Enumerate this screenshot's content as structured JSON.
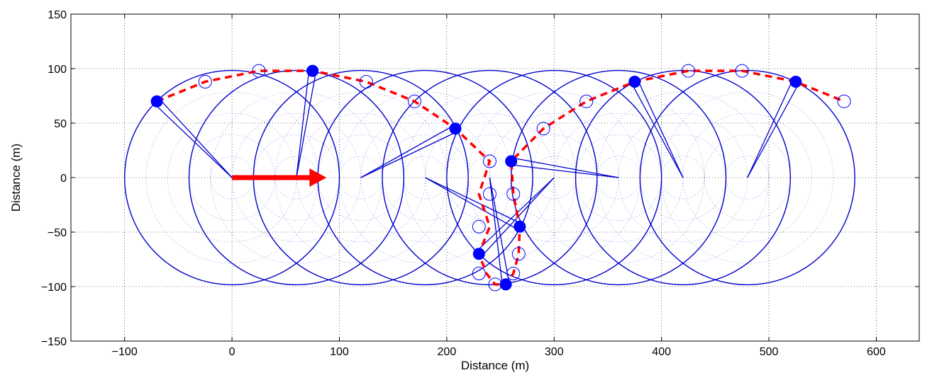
{
  "chart_data": {
    "type": "scatter",
    "title": "",
    "xlabel": "Distance (m)",
    "ylabel": "Distance (m)",
    "xlim": [
      -150,
      640
    ],
    "ylim": [
      -150,
      150
    ],
    "xticks": [
      -100,
      0,
      100,
      200,
      300,
      400,
      500,
      600
    ],
    "yticks": [
      -150,
      -100,
      -50,
      0,
      50,
      100,
      150
    ],
    "xtick_labels": [
      "−100",
      "0",
      "100",
      "200",
      "300",
      "400",
      "500",
      "600"
    ],
    "ytick_labels": [
      "−150",
      "−100",
      "−50",
      "0",
      "50",
      "100",
      "150"
    ],
    "grid": true,
    "colors": {
      "circles": "#0000cc",
      "path": "#ff0000",
      "points": "#0000ff",
      "arrow": "#ff0000"
    },
    "circles": {
      "radius": 100,
      "centers": [
        [
          0,
          0
        ],
        [
          60,
          0
        ],
        [
          120,
          0
        ],
        [
          180,
          0
        ],
        [
          240,
          0
        ],
        [
          300,
          0
        ],
        [
          360,
          0
        ],
        [
          420,
          0
        ],
        [
          480,
          0
        ]
      ]
    },
    "arrow": {
      "from": [
        0,
        0
      ],
      "to": [
        88,
        0
      ]
    },
    "path": {
      "style": "dashed",
      "x": [
        -70,
        -25,
        25,
        75,
        125,
        170,
        208,
        240,
        230,
        240,
        230,
        237,
        245,
        255,
        262,
        267,
        268,
        262,
        260,
        290,
        330,
        375,
        425,
        475,
        525,
        570
      ],
      "y": [
        70,
        88,
        98,
        98,
        88,
        70,
        45,
        15,
        -15,
        -45,
        -70,
        -88,
        -98,
        -98,
        -88,
        -70,
        -45,
        -15,
        15,
        45,
        70,
        88,
        98,
        98,
        88,
        70
      ]
    },
    "filled_points": [
      {
        "x": -70,
        "y": 70,
        "receiver": [
          0,
          0
        ]
      },
      {
        "x": 75,
        "y": 98,
        "receiver": [
          60,
          0
        ]
      },
      {
        "x": 208,
        "y": 45,
        "receiver": [
          120,
          0
        ]
      },
      {
        "x": 260,
        "y": 15,
        "receiver": [
          360,
          0
        ]
      },
      {
        "x": 268,
        "y": -45,
        "receiver": [
          180,
          0
        ]
      },
      {
        "x": 230,
        "y": -70,
        "receiver": [
          300,
          0
        ]
      },
      {
        "x": 255,
        "y": -98,
        "receiver": [
          240,
          0
        ]
      },
      {
        "x": 375,
        "y": 88,
        "receiver": [
          420,
          0
        ]
      },
      {
        "x": 525,
        "y": 88,
        "receiver": [
          480,
          0
        ]
      }
    ],
    "open_points": [
      {
        "x": -25,
        "y": 88
      },
      {
        "x": 25,
        "y": 98
      },
      {
        "x": 125,
        "y": 88
      },
      {
        "x": 170,
        "y": 70
      },
      {
        "x": 240,
        "y": 15
      },
      {
        "x": 240,
        "y": -15
      },
      {
        "x": 230,
        "y": -45
      },
      {
        "x": 230,
        "y": -88
      },
      {
        "x": 245,
        "y": -98
      },
      {
        "x": 262,
        "y": -88
      },
      {
        "x": 267,
        "y": -70
      },
      {
        "x": 262,
        "y": -15
      },
      {
        "x": 290,
        "y": 45
      },
      {
        "x": 330,
        "y": 70
      },
      {
        "x": 425,
        "y": 98
      },
      {
        "x": 475,
        "y": 98
      },
      {
        "x": 570,
        "y": 70
      }
    ]
  }
}
